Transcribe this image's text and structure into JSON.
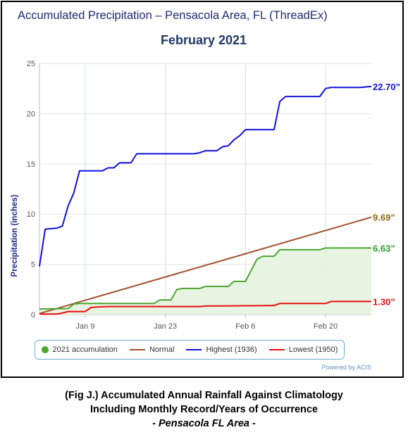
{
  "chart_data": {
    "type": "line",
    "title": "Accumulated Precipitation – Pensacola Area, FL (ThreadEx)",
    "subtitle": "February 2021",
    "ylabel": "Precipitation (inches)",
    "xlabel": "",
    "ylim": [
      0,
      25
    ],
    "yticks": [
      0,
      5,
      10,
      15,
      20,
      25
    ],
    "x_start_label": "Jan 1",
    "x_end_label": "Feb 28",
    "xticks": [
      {
        "day": 9,
        "label": "Jan 9"
      },
      {
        "day": 23,
        "label": "Jan 23"
      },
      {
        "day": 37,
        "label": "Feb 6"
      },
      {
        "day": 51,
        "label": "Feb 20"
      }
    ],
    "grid": true,
    "legend_position": "bottom",
    "series": [
      {
        "name": "2021 accumulation",
        "color": "#4aa52e",
        "style": "area-line",
        "end_label": "6.63”",
        "points": [
          [
            1,
            0.55
          ],
          [
            6,
            0.6
          ],
          [
            7,
            1.05
          ],
          [
            8,
            1.1
          ],
          [
            9,
            1.1
          ],
          [
            21,
            1.1
          ],
          [
            22,
            1.45
          ],
          [
            24,
            1.45
          ],
          [
            25,
            2.5
          ],
          [
            26,
            2.6
          ],
          [
            29,
            2.6
          ],
          [
            30,
            2.8
          ],
          [
            34,
            2.8
          ],
          [
            35,
            3.3
          ],
          [
            37,
            3.3
          ],
          [
            38,
            4.4
          ],
          [
            39,
            5.5
          ],
          [
            40,
            5.8
          ],
          [
            42,
            5.8
          ],
          [
            43,
            6.45
          ],
          [
            50,
            6.45
          ],
          [
            51,
            6.63
          ],
          [
            59,
            6.63
          ]
        ]
      },
      {
        "name": "Normal",
        "color": "#a0522d",
        "style": "line",
        "end_label": "9.69”",
        "points": [
          [
            1,
            0.1
          ],
          [
            59,
            9.69
          ]
        ]
      },
      {
        "name": "Highest (1936)",
        "color": "#1010dd",
        "style": "line",
        "end_label": "22.70”",
        "points": [
          [
            1,
            4.8
          ],
          [
            2,
            8.5
          ],
          [
            4,
            8.6
          ],
          [
            5,
            8.8
          ],
          [
            6,
            10.8
          ],
          [
            7,
            12.1
          ],
          [
            8,
            14.3
          ],
          [
            12,
            14.3
          ],
          [
            13,
            14.6
          ],
          [
            14,
            14.6
          ],
          [
            15,
            15.1
          ],
          [
            17,
            15.1
          ],
          [
            18,
            16.0
          ],
          [
            28,
            16.0
          ],
          [
            29,
            16.1
          ],
          [
            30,
            16.3
          ],
          [
            32,
            16.3
          ],
          [
            33,
            16.7
          ],
          [
            34,
            16.8
          ],
          [
            35,
            17.4
          ],
          [
            36,
            17.8
          ],
          [
            37,
            18.4
          ],
          [
            42,
            18.4
          ],
          [
            43,
            21.2
          ],
          [
            44,
            21.7
          ],
          [
            50,
            21.7
          ],
          [
            51,
            22.5
          ],
          [
            52,
            22.6
          ],
          [
            57,
            22.6
          ],
          [
            59,
            22.7
          ]
        ]
      },
      {
        "name": "Lowest (1950)",
        "color": "#e81010",
        "style": "line",
        "end_label": "1.30”",
        "points": [
          [
            1,
            0.05
          ],
          [
            4,
            0.05
          ],
          [
            5,
            0.15
          ],
          [
            6,
            0.3
          ],
          [
            9,
            0.3
          ],
          [
            10,
            0.7
          ],
          [
            11,
            0.75
          ],
          [
            13,
            0.8
          ],
          [
            29,
            0.8
          ],
          [
            30,
            0.85
          ],
          [
            42,
            0.9
          ],
          [
            43,
            1.1
          ],
          [
            51,
            1.1
          ],
          [
            52,
            1.3
          ],
          [
            59,
            1.3
          ]
        ]
      }
    ]
  },
  "legend": {
    "items": [
      {
        "label": "2021 accumulation",
        "color": "#4aa52e",
        "shape": "dot"
      },
      {
        "label": "Normal",
        "color": "#a0522d",
        "shape": "line"
      },
      {
        "label": "Highest (1936)",
        "color": "#1010dd",
        "shape": "line"
      },
      {
        "label": "Lowest (1950)",
        "color": "#e81010",
        "shape": "line"
      }
    ]
  },
  "credit": "Powered by ACIS",
  "caption": {
    "line1": "(Fig J.) Accumulated Annual Rainfall Against Climatology",
    "line2": "Including Monthly Record/Years of Occurrence",
    "line3": "- Pensacola FL Area -"
  }
}
